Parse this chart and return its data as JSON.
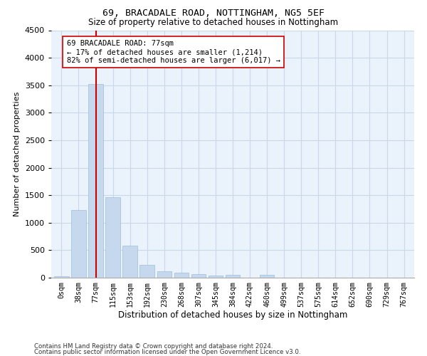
{
  "title": "69, BRACADALE ROAD, NOTTINGHAM, NG5 5EF",
  "subtitle": "Size of property relative to detached houses in Nottingham",
  "xlabel": "Distribution of detached houses by size in Nottingham",
  "ylabel": "Number of detached properties",
  "bar_color": "#c5d8ed",
  "bar_edge_color": "#a0bcd8",
  "grid_color": "#c8d8e8",
  "bg_color": "#eaf2fb",
  "categories": [
    "0sqm",
    "38sqm",
    "77sqm",
    "115sqm",
    "153sqm",
    "192sqm",
    "230sqm",
    "268sqm",
    "307sqm",
    "345sqm",
    "384sqm",
    "422sqm",
    "460sqm",
    "499sqm",
    "537sqm",
    "575sqm",
    "614sqm",
    "652sqm",
    "690sqm",
    "729sqm",
    "767sqm"
  ],
  "values": [
    25,
    1230,
    3520,
    1460,
    580,
    230,
    115,
    90,
    60,
    38,
    48,
    5,
    58,
    5,
    0,
    0,
    0,
    0,
    0,
    0,
    0
  ],
  "ylim": [
    0,
    4500
  ],
  "yticks": [
    0,
    500,
    1000,
    1500,
    2000,
    2500,
    3000,
    3500,
    4000,
    4500
  ],
  "vline_x": 2,
  "vline_color": "#cc0000",
  "annotation_text": "69 BRACADALE ROAD: 77sqm\n← 17% of detached houses are smaller (1,214)\n82% of semi-detached houses are larger (6,017) →",
  "annotation_box_color": "#ffffff",
  "annotation_box_edge": "#cc0000",
  "footer_line1": "Contains HM Land Registry data © Crown copyright and database right 2024.",
  "footer_line2": "Contains public sector information licensed under the Open Government Licence v3.0."
}
